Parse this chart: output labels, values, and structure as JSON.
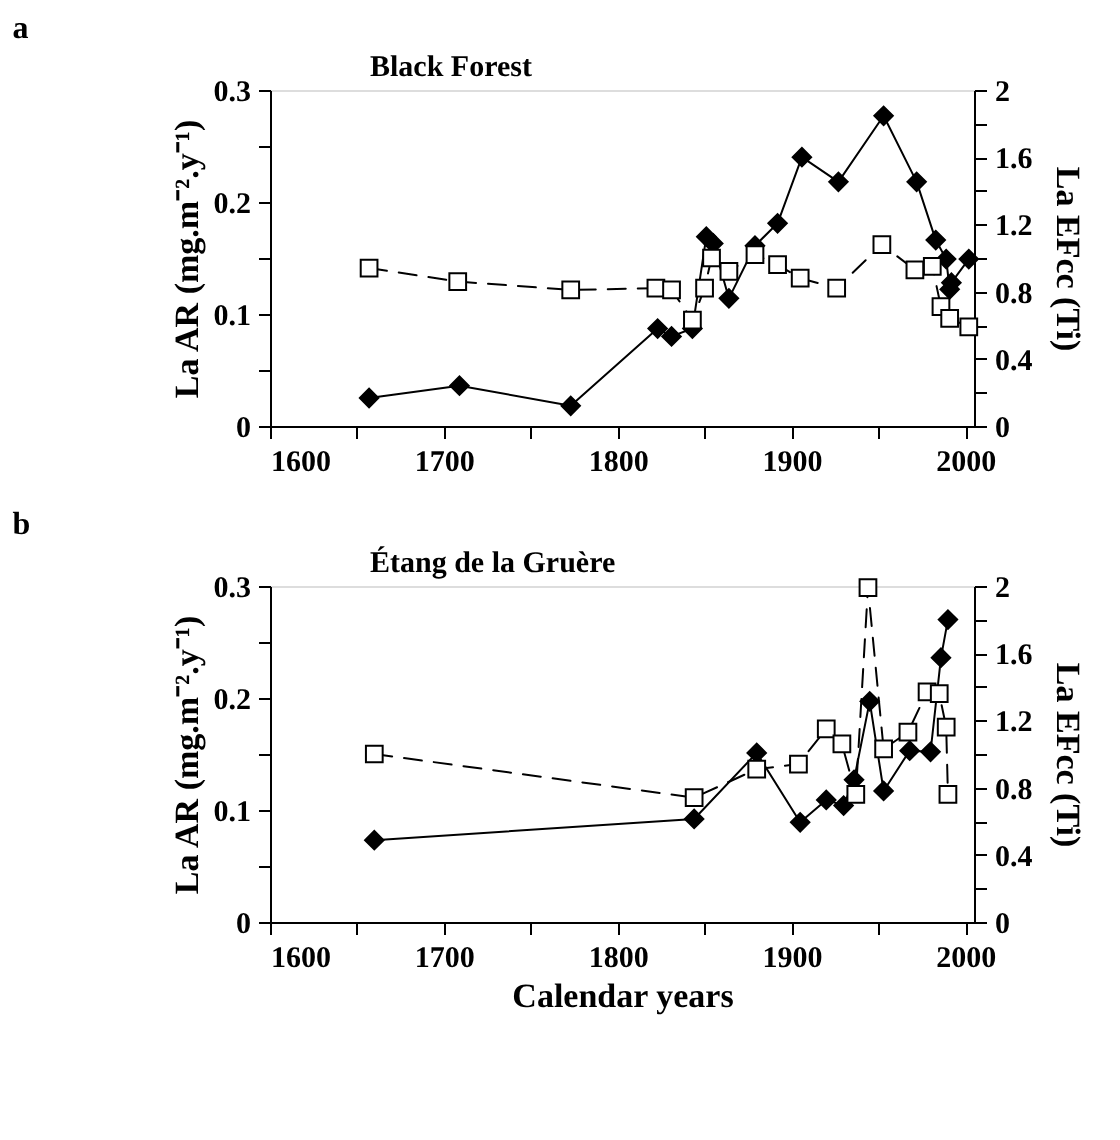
{
  "chart_data": [
    {
      "type": "line",
      "title": "Black Forest",
      "annotations": [
        "a"
      ],
      "ylabel": "La AR (mg.m⁻².y⁻¹)",
      "y2label": "La EFcc (Ti)",
      "xlim": [
        1600,
        2005
      ],
      "xticks": [
        1600,
        {
          "value": 1650,
          "label": null
        },
        1700,
        {
          "value": 1750,
          "label": null
        },
        1800,
        {
          "value": 1850,
          "label": null
        },
        1900,
        {
          "value": 1950,
          "label": null
        },
        2000
      ],
      "ylim": [
        0,
        0.3
      ],
      "yticks": [
        0,
        {
          "value": 0.05,
          "label": null
        },
        0.1,
        {
          "value": 0.15,
          "label": null
        },
        0.2,
        {
          "value": 0.25,
          "label": null
        },
        0.3
      ],
      "y2lim": [
        0,
        2
      ],
      "y2ticks": [
        0,
        {
          "value": 0.2,
          "label": null
        },
        0.4,
        {
          "value": 0.6,
          "label": null
        },
        0.8,
        {
          "value": 1.0,
          "label": null
        },
        1.2,
        {
          "value": 1.4,
          "label": null
        },
        1.6,
        {
          "value": 1.8,
          "label": null
        },
        2
      ],
      "grid": false,
      "series": [
        {
          "color": "#000000",
          "marker": "diamond",
          "line_style": "solid",
          "x": [
            1657,
            1709,
            1773,
            1823,
            1831,
            1843,
            1851,
            1855,
            1864,
            1879,
            1892,
            1906,
            1927,
            1953,
            1972,
            1983,
            1989,
            1991,
            1992,
            2002
          ],
          "values": [
            0.025,
            0.036,
            0.018,
            0.087,
            0.08,
            0.087,
            0.169,
            0.163,
            0.114,
            0.161,
            0.181,
            0.24,
            0.218,
            0.277,
            0.218,
            0.166,
            0.149,
            0.122,
            0.128,
            0.149
          ]
        },
        {
          "color": "#000000",
          "marker": "square",
          "line_style": "dashed",
          "axis": "y2",
          "x": [
            1657,
            1708,
            1773,
            1822,
            1831,
            1843,
            1850,
            1854,
            1864,
            1879,
            1892,
            1905,
            1926,
            1952,
            1971,
            1981,
            1986,
            1991,
            2002
          ],
          "values": [
            0.94,
            0.86,
            0.81,
            0.82,
            0.81,
            0.63,
            0.82,
            1.0,
            0.92,
            1.02,
            0.96,
            0.88,
            0.82,
            1.08,
            0.93,
            0.95,
            0.71,
            0.64,
            0.59
          ]
        }
      ]
    },
    {
      "type": "line",
      "title": "Étang de la Gruère",
      "annotations": [
        "b"
      ],
      "xlabel": "Calendar years",
      "ylabel": "La AR (mg.m⁻².y⁻¹)",
      "y2label": "La EFcc (Ti)",
      "xlim": [
        1600,
        2005
      ],
      "xticks": [
        1600,
        {
          "value": 1650,
          "label": null
        },
        1700,
        {
          "value": 1750,
          "label": null
        },
        1800,
        {
          "value": 1850,
          "label": null
        },
        1900,
        {
          "value": 1950,
          "label": null
        },
        2000
      ],
      "ylim": [
        0,
        0.3
      ],
      "yticks": [
        0,
        {
          "value": 0.05,
          "label": null
        },
        0.1,
        {
          "value": 0.15,
          "label": null
        },
        0.2,
        {
          "value": 0.25,
          "label": null
        },
        0.3
      ],
      "y2lim": [
        0,
        2
      ],
      "y2ticks": [
        0,
        {
          "value": 0.2,
          "label": null
        },
        0.4,
        {
          "value": 0.6,
          "label": null
        },
        0.8,
        {
          "value": 1.0,
          "label": null
        },
        1.2,
        {
          "value": 1.4,
          "label": null
        },
        1.6,
        {
          "value": 1.8,
          "label": null
        },
        2
      ],
      "grid": false,
      "series": [
        {
          "color": "#000000",
          "marker": "diamond",
          "line_style": "solid",
          "x": [
            1660,
            1844,
            1880,
            1905,
            1920,
            1930,
            1936,
            1945,
            1953,
            1968,
            1980,
            1986,
            1990
          ],
          "values": [
            0.073,
            0.092,
            0.151,
            0.089,
            0.109,
            0.104,
            0.127,
            0.197,
            0.117,
            0.153,
            0.152,
            0.236,
            0.27
          ]
        },
        {
          "color": "#000000",
          "marker": "square",
          "line_style": "dashed",
          "axis": "y2",
          "x": [
            1660,
            1844,
            1880,
            1904,
            1920,
            1929,
            1937,
            1944,
            1953,
            1967,
            1978,
            1985,
            1989,
            1990
          ],
          "values": [
            1.0,
            0.74,
            0.91,
            0.94,
            1.15,
            1.06,
            0.76,
            1.99,
            1.03,
            1.13,
            1.37,
            1.36,
            1.16,
            0.76
          ]
        }
      ]
    }
  ]
}
